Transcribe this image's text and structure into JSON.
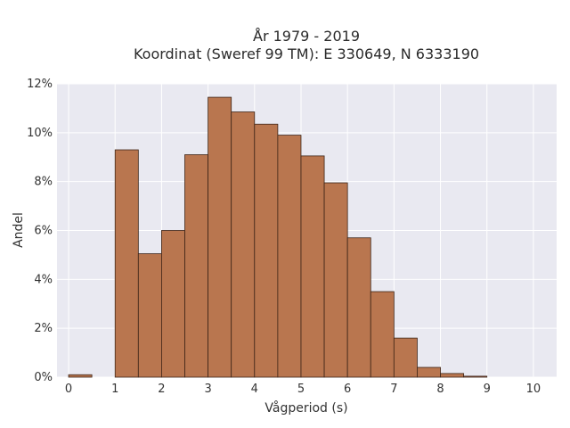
{
  "chart_data": {
    "type": "bar",
    "title": "År 1979 - 2019",
    "subtitle": "Koordinat (Sweref 99 TM): E 330649, N 6333190",
    "xlabel": "Vågperiod (s)",
    "ylabel": "Andel",
    "xlim": [
      -0.25,
      10.5
    ],
    "ylim": [
      0,
      12
    ],
    "xticks": [
      0,
      1,
      2,
      3,
      4,
      5,
      6,
      7,
      8,
      9,
      10
    ],
    "yticks": [
      0,
      2,
      4,
      6,
      8,
      10,
      12
    ],
    "ytick_labels": [
      "0%",
      "2%",
      "4%",
      "6%",
      "8%",
      "10%",
      "12%"
    ],
    "bin_width": 0.5,
    "bins": [
      {
        "x": 0.0,
        "value": 0.1
      },
      {
        "x": 0.5,
        "value": 0.0
      },
      {
        "x": 1.0,
        "value": 9.3
      },
      {
        "x": 1.5,
        "value": 5.05
      },
      {
        "x": 2.0,
        "value": 6.0
      },
      {
        "x": 2.5,
        "value": 9.1
      },
      {
        "x": 3.0,
        "value": 11.45
      },
      {
        "x": 3.5,
        "value": 10.85
      },
      {
        "x": 4.0,
        "value": 10.35
      },
      {
        "x": 4.5,
        "value": 9.9
      },
      {
        "x": 5.0,
        "value": 9.05
      },
      {
        "x": 5.5,
        "value": 7.95
      },
      {
        "x": 6.0,
        "value": 5.7
      },
      {
        "x": 6.5,
        "value": 3.5
      },
      {
        "x": 7.0,
        "value": 1.6
      },
      {
        "x": 7.5,
        "value": 0.4
      },
      {
        "x": 8.0,
        "value": 0.15
      },
      {
        "x": 8.5,
        "value": 0.04
      }
    ],
    "grid": true,
    "colors": {
      "bar_fill": "#b9764f",
      "bar_edge": "#3d2417",
      "plot_bg": "#e9e9f1",
      "grid": "#ffffff"
    }
  }
}
